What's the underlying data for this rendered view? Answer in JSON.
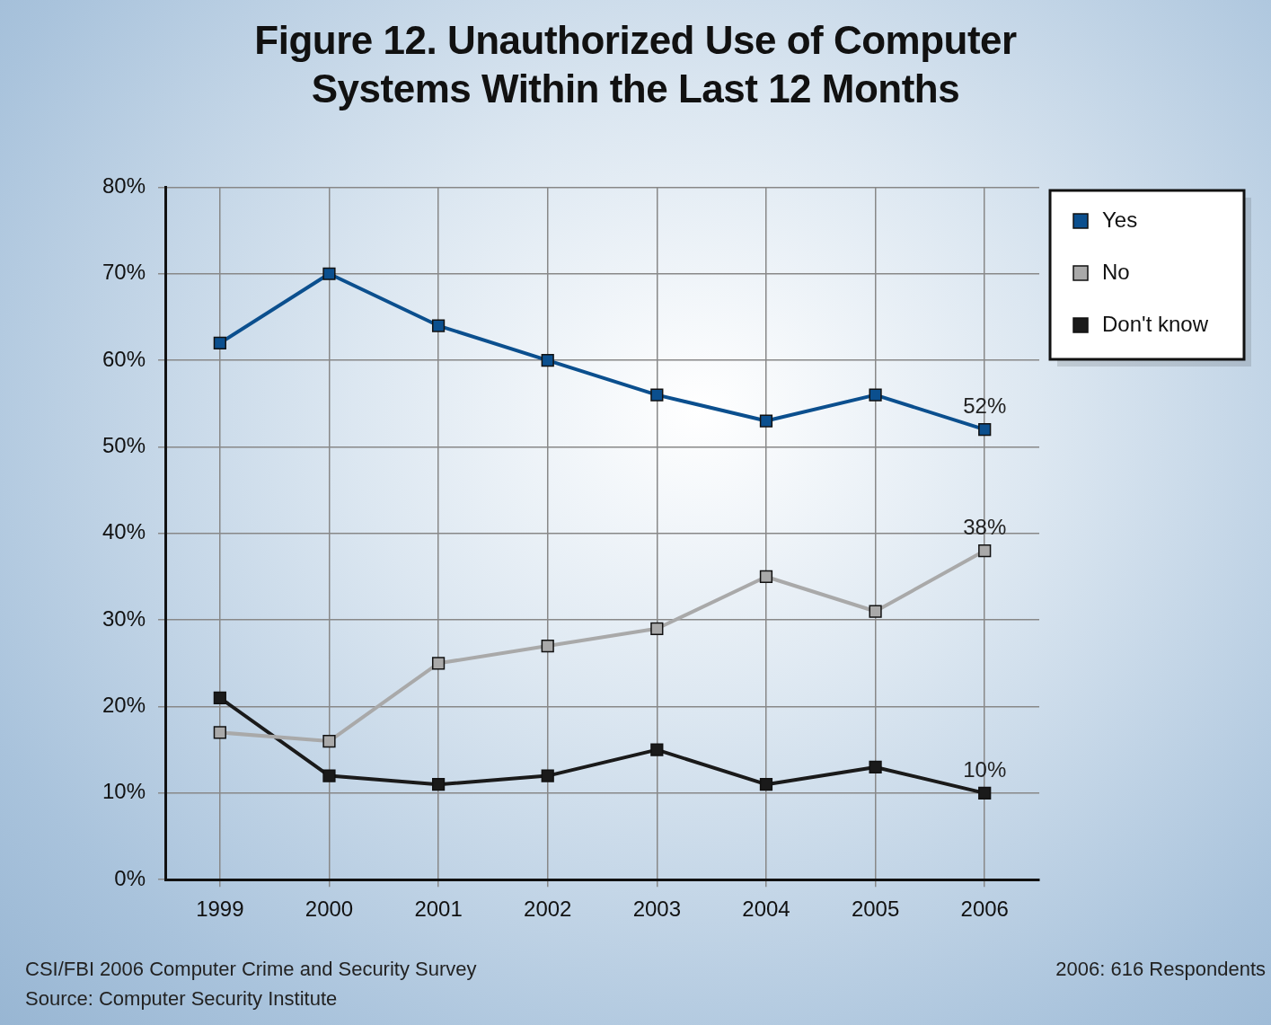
{
  "chart_data": {
    "type": "line",
    "title": "Figure 12. Unauthorized Use of Computer Systems Within the Last 12 Months",
    "categories": [
      "1999",
      "2000",
      "2001",
      "2002",
      "2003",
      "2004",
      "2005",
      "2006"
    ],
    "series": [
      {
        "name": "Yes",
        "color": "#0b4f8e",
        "values": [
          62,
          70,
          64,
          60,
          56,
          53,
          56,
          52
        ],
        "value_labels": [
          null,
          null,
          null,
          null,
          null,
          null,
          null,
          "52%"
        ]
      },
      {
        "name": "No",
        "color": "#a9a9a9",
        "values": [
          17,
          16,
          25,
          27,
          29,
          35,
          31,
          38
        ],
        "value_labels": [
          null,
          null,
          null,
          null,
          null,
          null,
          null,
          "38%"
        ]
      },
      {
        "name": "Don't know",
        "color": "#1a1a1a",
        "values": [
          21,
          12,
          11,
          12,
          15,
          11,
          13,
          10
        ],
        "value_labels": [
          null,
          null,
          null,
          null,
          null,
          null,
          null,
          "10%"
        ]
      }
    ],
    "ylim": [
      0,
      80
    ],
    "yticks": [
      {
        "value": 0,
        "label": "0%"
      },
      {
        "value": 10,
        "label": "10%"
      },
      {
        "value": 20,
        "label": "20%"
      },
      {
        "value": 30,
        "label": "30%"
      },
      {
        "value": 40,
        "label": "40%"
      },
      {
        "value": 50,
        "label": "50%"
      },
      {
        "value": 60,
        "label": "60%"
      },
      {
        "value": 70,
        "label": "70%"
      },
      {
        "value": 80,
        "label": "80%"
      }
    ],
    "grid": true,
    "legend": "right",
    "marker": "square",
    "line_style": "solid",
    "annotations": [
      "CSI/FBI 2006 Computer Crime and Security Survey",
      "Source: Computer Security Institute",
      "2006: 616 Respondents"
    ]
  }
}
